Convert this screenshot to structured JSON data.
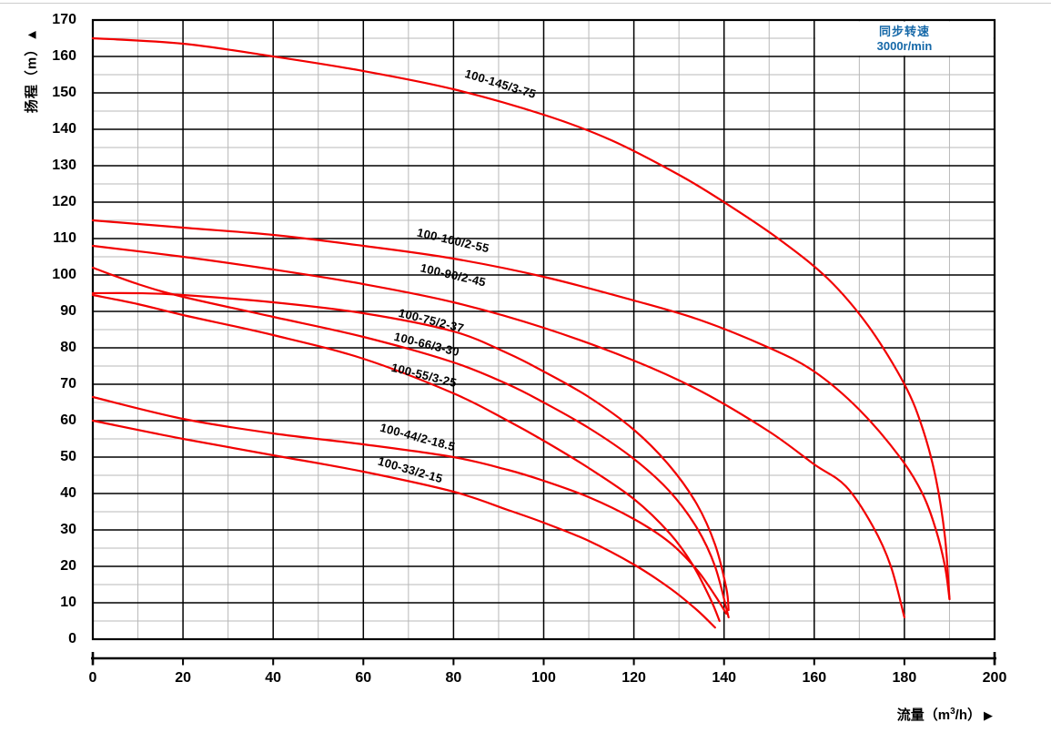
{
  "chart_data": {
    "type": "line",
    "title": "",
    "xlabel_pre": "流量（m",
    "xlabel_sup": "3",
    "xlabel_post": "/h）",
    "xlabel_arrow": "▶",
    "ylabel": "扬程（m）▲",
    "legend": {
      "line1": "同步转速",
      "line2": "3000r/min",
      "text_color": "#1568a8",
      "position": "top-right"
    },
    "xlim": [
      0,
      200
    ],
    "ylim": [
      0,
      170
    ],
    "x_ticks": [
      0,
      20,
      40,
      60,
      80,
      100,
      120,
      140,
      160,
      180,
      200
    ],
    "y_ticks": [
      0,
      10,
      20,
      30,
      40,
      50,
      60,
      70,
      80,
      90,
      100,
      110,
      120,
      130,
      140,
      150,
      160,
      170
    ],
    "x_major_step": 20,
    "x_minor_step": 10,
    "y_major_step": 10,
    "y_minor_step": 5,
    "grid": {
      "minor_color": "#b8b8b8",
      "major_color": "#000000",
      "border_color": "#000000"
    },
    "series_color": "#f20000",
    "series": [
      {
        "name": "100-145/3-75",
        "label": {
          "x": 90.5,
          "y": 152.5,
          "angle": 17
        },
        "points": [
          [
            0,
            165
          ],
          [
            20,
            163.5
          ],
          [
            40,
            160
          ],
          [
            60,
            156
          ],
          [
            80,
            151
          ],
          [
            100,
            144
          ],
          [
            115,
            137
          ],
          [
            130,
            127.5
          ],
          [
            140,
            120
          ],
          [
            152,
            110
          ],
          [
            163,
            99
          ],
          [
            172,
            86
          ],
          [
            180,
            70
          ],
          [
            184,
            58
          ],
          [
            187,
            44
          ],
          [
            189,
            28
          ],
          [
            190,
            11
          ]
        ]
      },
      {
        "name": "100-100/2-55",
        "label": {
          "x": 80,
          "y": 109.5,
          "angle": 13
        },
        "points": [
          [
            0,
            115
          ],
          [
            20,
            113
          ],
          [
            40,
            111
          ],
          [
            60,
            108
          ],
          [
            80,
            104.5
          ],
          [
            100,
            99.5
          ],
          [
            120,
            93
          ],
          [
            135,
            87.5
          ],
          [
            150,
            80
          ],
          [
            160,
            73.5
          ],
          [
            170,
            63
          ],
          [
            179,
            50
          ],
          [
            184,
            40
          ],
          [
            187,
            30
          ],
          [
            189,
            20
          ],
          [
            190,
            11
          ]
        ]
      },
      {
        "name": "100-90/2-45",
        "label": {
          "x": 80,
          "y": 100,
          "angle": 13
        },
        "points": [
          [
            0,
            108
          ],
          [
            20,
            105
          ],
          [
            40,
            101.5
          ],
          [
            60,
            97.5
          ],
          [
            80,
            92.5
          ],
          [
            100,
            85.5
          ],
          [
            120,
            76.5
          ],
          [
            135,
            68
          ],
          [
            150,
            57
          ],
          [
            160,
            48
          ],
          [
            167,
            42
          ],
          [
            173,
            31
          ],
          [
            177,
            20
          ],
          [
            180,
            6
          ]
        ]
      },
      {
        "name": "100-75/2-37",
        "label": {
          "x": 75,
          "y": 87.5,
          "angle": 14
        },
        "points": [
          [
            0,
            95
          ],
          [
            10,
            95
          ],
          [
            20,
            94.5
          ],
          [
            40,
            92.5
          ],
          [
            60,
            89.5
          ],
          [
            80,
            84.5
          ],
          [
            92,
            78.5
          ],
          [
            100,
            73.5
          ],
          [
            110,
            66.5
          ],
          [
            120,
            57.5
          ],
          [
            128,
            47.5
          ],
          [
            134,
            37
          ],
          [
            138,
            26
          ],
          [
            140.5,
            14
          ],
          [
            141,
            8
          ]
        ]
      },
      {
        "name": "100-66/3-30",
        "label": {
          "x": 74,
          "y": 81,
          "angle": 14
        },
        "points": [
          [
            0,
            102
          ],
          [
            10,
            97.5
          ],
          [
            20,
            94
          ],
          [
            40,
            88.5
          ],
          [
            60,
            83
          ],
          [
            80,
            76
          ],
          [
            92,
            70
          ],
          [
            100,
            65
          ],
          [
            110,
            58
          ],
          [
            120,
            49.5
          ],
          [
            128,
            40.5
          ],
          [
            134,
            30.5
          ],
          [
            138,
            20
          ],
          [
            141,
            6
          ]
        ]
      },
      {
        "name": "100-55/3-25",
        "label": {
          "x": 73.5,
          "y": 72.5,
          "angle": 14
        },
        "points": [
          [
            0,
            94.5
          ],
          [
            10,
            92
          ],
          [
            20,
            89
          ],
          [
            40,
            83.5
          ],
          [
            60,
            77
          ],
          [
            80,
            67.5
          ],
          [
            92,
            60
          ],
          [
            100,
            54.5
          ],
          [
            110,
            47
          ],
          [
            120,
            38.5
          ],
          [
            128,
            29
          ],
          [
            133,
            20.5
          ],
          [
            137,
            11
          ],
          [
            139,
            5
          ]
        ]
      },
      {
        "name": "100-44/2-18.5",
        "label": {
          "x": 72,
          "y": 55.5,
          "angle": 15
        },
        "points": [
          [
            0,
            66.5
          ],
          [
            20,
            60.5
          ],
          [
            40,
            56.5
          ],
          [
            60,
            53.5
          ],
          [
            80,
            50
          ],
          [
            92,
            46.5
          ],
          [
            100,
            43.5
          ],
          [
            110,
            39
          ],
          [
            120,
            33
          ],
          [
            128,
            26.5
          ],
          [
            134,
            19
          ],
          [
            138,
            12
          ],
          [
            140.5,
            7
          ]
        ]
      },
      {
        "name": "100-33/2-15",
        "label": {
          "x": 70.5,
          "y": 46.5,
          "angle": 16
        },
        "points": [
          [
            0,
            60
          ],
          [
            20,
            55
          ],
          [
            40,
            50.5
          ],
          [
            60,
            46
          ],
          [
            80,
            40.5
          ],
          [
            92,
            35.5
          ],
          [
            100,
            32
          ],
          [
            110,
            27
          ],
          [
            120,
            20.5
          ],
          [
            128,
            14
          ],
          [
            134,
            8
          ],
          [
            138,
            3.2
          ]
        ]
      }
    ]
  }
}
